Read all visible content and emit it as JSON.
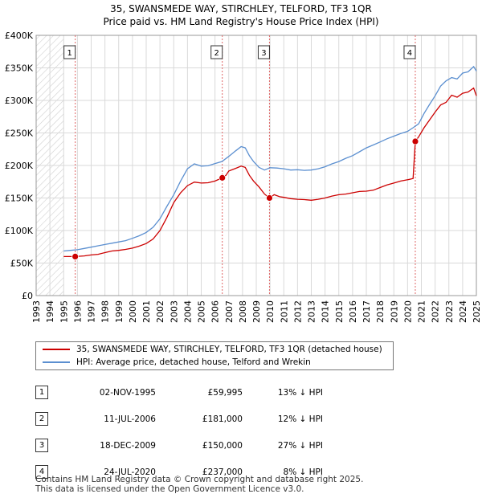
{
  "chart_data": {
    "type": "line",
    "title": "35, SWANSMEDE WAY, STIRCHLEY, TELFORD, TF3 1QR",
    "subtitle": "Price paid vs. HM Land Registry's House Price Index (HPI)",
    "ylim": [
      0,
      400000
    ],
    "xlim": [
      1993,
      2025
    ],
    "y_ticks": [
      0,
      50000,
      100000,
      150000,
      200000,
      250000,
      300000,
      350000,
      400000
    ],
    "y_tick_labels": [
      "£0",
      "£50K",
      "£100K",
      "£150K",
      "£200K",
      "£250K",
      "£300K",
      "£350K",
      "£400K"
    ],
    "x_ticks": [
      1993,
      1994,
      1995,
      1996,
      1997,
      1998,
      1999,
      2000,
      2001,
      2002,
      2003,
      2004,
      2005,
      2006,
      2007,
      2008,
      2009,
      2010,
      2011,
      2012,
      2013,
      2014,
      2015,
      2016,
      2017,
      2018,
      2019,
      2020,
      2021,
      2022,
      2023,
      2024,
      2025
    ],
    "grid": true,
    "hatched_range": [
      1993,
      1995.0
    ],
    "series": [
      {
        "name": "35, SWANSMEDE WAY, STIRCHLEY, TELFORD, TF3 1QR (detached house)",
        "color": "#cc0000",
        "x": [
          1995.0,
          1995.84,
          1996.5,
          1997.0,
          1997.5,
          1998.0,
          1998.5,
          1999.0,
          1999.5,
          2000.0,
          2000.5,
          2001.0,
          2001.5,
          2002.0,
          2002.5,
          2003.0,
          2003.5,
          2004.0,
          2004.5,
          2005.0,
          2005.5,
          2006.0,
          2006.53,
          2006.8,
          2007.0,
          2007.5,
          2007.9,
          2008.2,
          2008.5,
          2008.8,
          2009.2,
          2009.6,
          2009.96,
          2010.3,
          2010.7,
          2011.0,
          2011.5,
          2012.0,
          2012.5,
          2013.0,
          2013.5,
          2014.0,
          2014.5,
          2015.0,
          2015.5,
          2016.0,
          2016.5,
          2017.0,
          2017.5,
          2018.0,
          2018.5,
          2019.0,
          2019.5,
          2020.0,
          2020.4,
          2020.56,
          2020.8,
          2021.2,
          2021.6,
          2022.0,
          2022.4,
          2022.8,
          2023.2,
          2023.6,
          2024.0,
          2024.4,
          2024.8,
          2025.0
        ],
        "values": [
          60000,
          59995,
          61000,
          62500,
          63500,
          66000,
          68500,
          69500,
          71000,
          73000,
          76000,
          80000,
          87000,
          100000,
          120000,
          143000,
          158000,
          169000,
          174500,
          173000,
          173500,
          176000,
          181000,
          185000,
          191500,
          195500,
          199000,
          197000,
          185000,
          176000,
          167000,
          156000,
          150000,
          155000,
          152000,
          151000,
          149000,
          148000,
          147500,
          146500,
          148000,
          150000,
          153000,
          155000,
          156000,
          158000,
          160000,
          160500,
          162000,
          166000,
          170000,
          173000,
          176000,
          178000,
          180000,
          237000,
          244000,
          258000,
          270000,
          282000,
          293000,
          297000,
          308000,
          305000,
          311000,
          313000,
          319000,
          307000
        ]
      },
      {
        "name": "HPI: Average price, detached house, Telford and Wrekin",
        "color": "#5b8fd0",
        "x": [
          1995.0,
          1995.5,
          1996.0,
          1996.5,
          1997.0,
          1997.5,
          1998.0,
          1998.5,
          1999.0,
          1999.5,
          2000.0,
          2000.5,
          2001.0,
          2001.5,
          2002.0,
          2002.5,
          2003.0,
          2003.5,
          2004.0,
          2004.5,
          2005.0,
          2005.5,
          2006.0,
          2006.5,
          2007.0,
          2007.5,
          2007.9,
          2008.2,
          2008.5,
          2008.8,
          2009.2,
          2009.6,
          2010.0,
          2010.5,
          2011.0,
          2011.5,
          2012.0,
          2012.5,
          2013.0,
          2013.5,
          2014.0,
          2014.5,
          2015.0,
          2015.5,
          2016.0,
          2016.5,
          2017.0,
          2017.5,
          2018.0,
          2018.5,
          2019.0,
          2019.5,
          2020.0,
          2020.4,
          2020.8,
          2021.2,
          2021.6,
          2022.0,
          2022.4,
          2022.8,
          2023.2,
          2023.6,
          2024.0,
          2024.4,
          2024.8,
          2025.0
        ],
        "values": [
          68500,
          69500,
          70500,
          72500,
          74500,
          76500,
          78500,
          80500,
          82500,
          84500,
          88000,
          92000,
          97000,
          105000,
          118000,
          137000,
          155000,
          176000,
          195000,
          202500,
          199000,
          199500,
          203000,
          206000,
          214000,
          222500,
          229000,
          227000,
          215000,
          206000,
          197000,
          193000,
          196500,
          196000,
          195000,
          193000,
          193500,
          192500,
          193000,
          195000,
          198000,
          202500,
          206000,
          211000,
          215000,
          221000,
          227000,
          231500,
          236000,
          241000,
          245000,
          249000,
          252500,
          258000,
          264000,
          280000,
          294000,
          307000,
          322000,
          330000,
          335000,
          333000,
          342000,
          344000,
          352000,
          345000
        ]
      }
    ],
    "sales": [
      {
        "id": "1",
        "x": 1995.84,
        "price": 59995,
        "date": "02-NOV-1995",
        "price_label": "£59,995",
        "hpi": "13% ↓ HPI"
      },
      {
        "id": "2",
        "x": 2006.53,
        "price": 181000,
        "date": "11-JUL-2006",
        "price_label": "£181,000",
        "hpi": "12% ↓ HPI"
      },
      {
        "id": "3",
        "x": 2009.96,
        "price": 150000,
        "date": "18-DEC-2009",
        "price_label": "£150,000",
        "hpi": "27% ↓ HPI"
      },
      {
        "id": "4",
        "x": 2020.56,
        "price": 237000,
        "date": "24-JUL-2020",
        "price_label": "£237,000",
        "hpi": "8% ↓ HPI"
      }
    ]
  },
  "legend": {
    "property_label": "35, SWANSMEDE WAY, STIRCHLEY, TELFORD, TF3 1QR (detached house)",
    "hpi_label": "HPI: Average price, detached house, Telford and Wrekin"
  },
  "footer": {
    "line1": "Contains HM Land Registry data © Crown copyright and database right 2025.",
    "line2": "This data is licensed under the Open Government Licence v3.0."
  }
}
